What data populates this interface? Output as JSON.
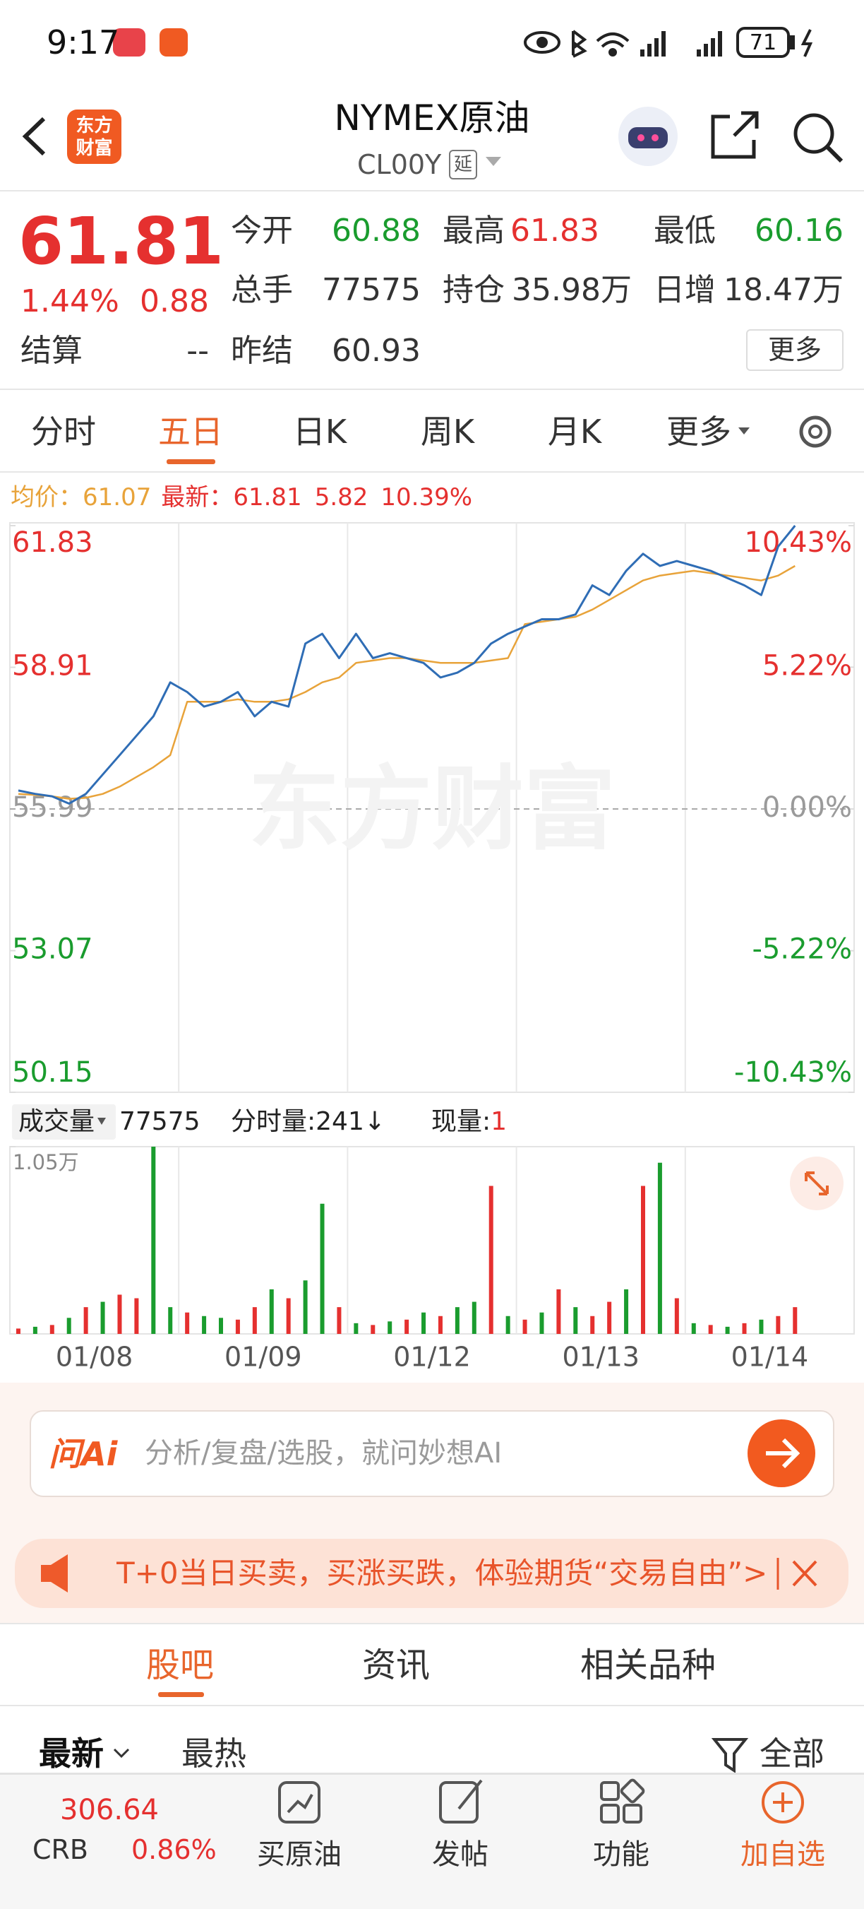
{
  "status_bar": {
    "time": "9:17",
    "battery": "71"
  },
  "header": {
    "logo": [
      "东方",
      "财富"
    ],
    "title": "NYMEX原油",
    "code": "CL00Y",
    "badge": "延"
  },
  "quote": {
    "price": "61.81",
    "change_pct": "1.44%",
    "change": "0.88",
    "settle_label": "结算",
    "settle": "--",
    "more": "更多",
    "fields": [
      {
        "label": "今开",
        "value": "60.88",
        "color": "#1a9c2e"
      },
      {
        "label": "最高",
        "value": "61.83",
        "color": "#e5302f"
      },
      {
        "label": "最低",
        "value": "60.16",
        "color": "#1a9c2e"
      },
      {
        "label": "总手",
        "value": "77575",
        "color": "#333333"
      },
      {
        "label": "持仓",
        "value": "35.98万",
        "color": "#333333"
      },
      {
        "label": "日增",
        "value": "18.47万",
        "color": "#333333"
      },
      {
        "label": "昨结",
        "value": "60.93",
        "color": "#333333"
      }
    ]
  },
  "tabs": {
    "items": [
      "分时",
      "五日",
      "日K",
      "周K",
      "月K",
      "更多"
    ],
    "active": 1
  },
  "chart_info": {
    "avg_label": "均价：",
    "avg": "61.07",
    "latest_label": "最新：",
    "latest": "61.81",
    "change": "5.82",
    "change_pct": "10.39%"
  },
  "watermark": "东方财富",
  "volume_info": {
    "label": "成交量",
    "total": "77575",
    "period_label": "分时量:241↓",
    "current_label": "现量:",
    "current": "1"
  },
  "chart_data": [
    {
      "type": "line",
      "ylim": [
        50.15,
        61.83
      ],
      "yticks": [
        61.83,
        58.91,
        55.99,
        53.07,
        50.15
      ],
      "y2lim": [
        -10.43,
        10.43
      ],
      "y2ticks": [
        {
          "value": 10.43,
          "label": "10.43%"
        },
        {
          "value": 5.22,
          "label": "5.22%"
        },
        {
          "value": 0,
          "label": "0.00%"
        },
        {
          "value": -5.22,
          "label": "-5.22%"
        },
        {
          "value": -10.43,
          "label": "-10.43%"
        }
      ],
      "series": [
        {
          "color": "#2f6db5",
          "values": [
            56.37,
            56.3,
            56.25,
            56.1,
            56.3,
            56.7,
            57.1,
            57.5,
            57.9,
            58.6,
            58.4,
            58.1,
            58.2,
            58.4,
            57.9,
            58.2,
            58.1,
            59.4,
            59.6,
            59.1,
            59.6,
            59.1,
            59.2,
            59.1,
            59.0,
            58.7,
            58.8,
            59.0,
            59.4,
            59.6,
            59.75,
            59.9,
            59.9,
            60.0,
            60.6,
            60.4,
            60.9,
            61.25,
            61.0,
            61.1,
            61.0,
            60.9,
            60.75,
            60.6,
            60.4,
            61.4,
            61.83
          ]
        },
        {
          "color": "#e8a33a",
          "values": [
            56.3,
            56.28,
            56.25,
            56.2,
            56.22,
            56.3,
            56.45,
            56.65,
            56.85,
            57.1,
            58.2,
            58.2,
            58.2,
            58.25,
            58.2,
            58.2,
            58.25,
            58.4,
            58.6,
            58.7,
            59.0,
            59.05,
            59.1,
            59.1,
            59.05,
            59.0,
            59.0,
            59.0,
            59.05,
            59.1,
            59.8,
            59.85,
            59.9,
            59.95,
            60.1,
            60.3,
            60.5,
            60.7,
            60.8,
            60.85,
            60.9,
            60.85,
            60.8,
            60.75,
            60.7,
            60.8,
            61.0
          ]
        }
      ]
    },
    {
      "type": "bar",
      "ylim": [
        0,
        10500
      ],
      "yticks": [
        {
          "value": 10500,
          "label": "1.05万"
        }
      ],
      "day_labels": [
        "01/08",
        "01/09",
        "01/12",
        "01/13",
        "01/14"
      ],
      "values": [
        300,
        400,
        500,
        900,
        1500,
        1800,
        2200,
        2000,
        10500,
        1500,
        1200,
        1000,
        900,
        800,
        1500,
        2500,
        2000,
        3000,
        7300,
        1500,
        600,
        500,
        700,
        800,
        1200,
        1000,
        1500,
        1800,
        8300,
        1000,
        800,
        1200,
        2500,
        1500,
        1000,
        1800,
        2500,
        8300,
        9600,
        2000,
        600,
        500,
        400,
        600,
        800,
        1000,
        1500
      ],
      "colors": [
        "#e5302f",
        "#1a9c2e",
        "#e5302f",
        "#1a9c2e",
        "#e5302f",
        "#1a9c2e",
        "#e5302f",
        "#e5302f",
        "#1a9c2e",
        "#1a9c2e",
        "#e5302f",
        "#1a9c2e",
        "#1a9c2e",
        "#e5302f",
        "#e5302f",
        "#1a9c2e",
        "#e5302f",
        "#1a9c2e",
        "#1a9c2e",
        "#e5302f",
        "#1a9c2e",
        "#e5302f",
        "#1a9c2e",
        "#e5302f",
        "#1a9c2e",
        "#e5302f",
        "#1a9c2e",
        "#1a9c2e",
        "#e5302f",
        "#1a9c2e",
        "#e5302f",
        "#1a9c2e",
        "#e5302f",
        "#1a9c2e",
        "#e5302f",
        "#e5302f",
        "#1a9c2e",
        "#e5302f",
        "#1a9c2e",
        "#e5302f",
        "#1a9c2e",
        "#e5302f",
        "#1a9c2e",
        "#e5302f",
        "#1a9c2e",
        "#e5302f",
        "#e5302f"
      ]
    }
  ],
  "ai_box": {
    "brand": "问Ai",
    "placeholder": "分析/复盘/选股，就问妙想AI"
  },
  "banner": "T+0当日买卖，买涨买跌，体验期货“交易自由”>",
  "section_tabs": {
    "items": [
      "股吧",
      "资讯",
      "相关品种"
    ],
    "active": 0
  },
  "sort_tabs": {
    "items": [
      "最新",
      "最热"
    ],
    "filter": "全部"
  },
  "bottom_bar": {
    "index_value": "306.64",
    "index_name": "CRB",
    "index_pct": "0.86%",
    "actions": [
      "买原油",
      "发帖",
      "功能",
      "加自选"
    ]
  }
}
